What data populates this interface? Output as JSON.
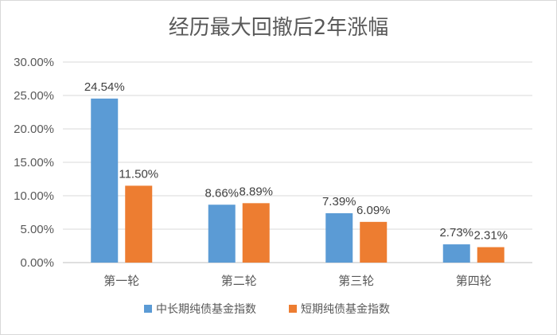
{
  "chart_data": {
    "type": "bar",
    "title": "经历最大回撤后2年涨幅",
    "xlabel": "",
    "ylabel": "",
    "categories": [
      "第一轮",
      "第二轮",
      "第三轮",
      "第四轮"
    ],
    "series": [
      {
        "name": "中长期纯债基金指数",
        "color": "#5b9bd5",
        "values": [
          24.54,
          8.66,
          7.39,
          2.73
        ],
        "labels": [
          "24.54%",
          "8.66%",
          "7.39%",
          "2.73%"
        ]
      },
      {
        "name": "短期纯债基金指数",
        "color": "#ed7d31",
        "values": [
          11.5,
          8.89,
          6.09,
          2.31
        ],
        "labels": [
          "11.50%",
          "8.89%",
          "6.09%",
          "2.31%"
        ]
      }
    ],
    "ylim": [
      0,
      30
    ],
    "yticks": [
      0,
      5,
      10,
      15,
      20,
      25,
      30
    ],
    "ytick_labels": [
      "0.00%",
      "5.00%",
      "10.00%",
      "15.00%",
      "20.00%",
      "25.00%",
      "30.00%"
    ],
    "grid": true,
    "legend_position": "bottom"
  }
}
